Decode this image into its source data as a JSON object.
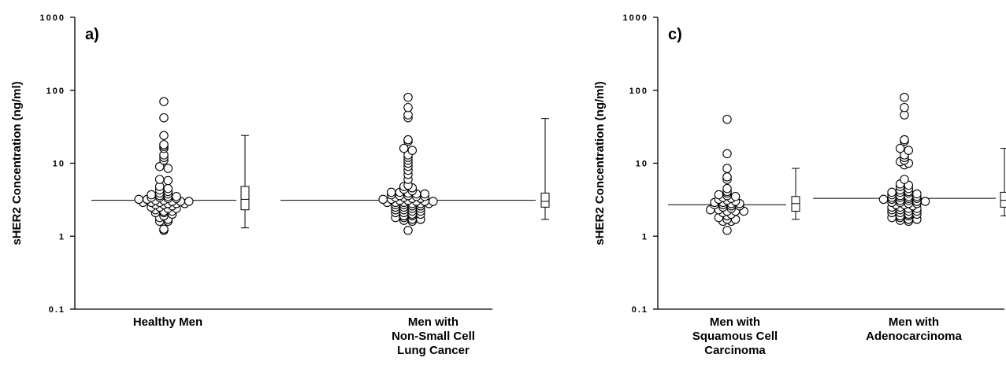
{
  "chart_data": [
    {
      "type": "scatter",
      "panel_label": "a)",
      "ylabel": "sHER2 Concentration (ng/ml)",
      "yscale": "log",
      "ylim": [
        0.1,
        1000
      ],
      "yticks": [
        0.1,
        1,
        10,
        100,
        1000
      ],
      "ytick_labels": [
        "0.1",
        "1",
        "10",
        "100",
        "1000"
      ],
      "grid": false,
      "groups": [
        {
          "label": [
            "Healthy Men"
          ],
          "median": 3.1,
          "box": {
            "min": 1.3,
            "q1": 2.3,
            "median": 3.2,
            "q3": 4.8,
            "max": 24
          },
          "values": [
            70,
            42,
            24,
            18,
            17,
            16,
            13,
            12,
            11,
            9,
            8.5,
            6,
            5.8,
            4.8,
            4.5,
            4.3,
            4.1,
            3.9,
            3.8,
            3.7,
            3.6,
            3.5,
            3.5,
            3.4,
            3.4,
            3.3,
            3.3,
            3.2,
            3.2,
            3.1,
            3.1,
            3.0,
            3.0,
            3.0,
            2.9,
            2.9,
            2.9,
            2.8,
            2.8,
            2.8,
            2.7,
            2.7,
            2.6,
            2.5,
            2.5,
            2.4,
            2.4,
            2.3,
            2.2,
            2.2,
            2.1,
            2.1,
            2.0,
            1.9,
            1.8,
            1.7,
            1.6,
            1.6,
            1.25,
            1.2
          ]
        },
        {
          "label": [
            "Men with",
            "Non-Small Cell",
            "Lung Cancer"
          ],
          "median": 3.1,
          "box": {
            "min": 1.7,
            "q1": 2.5,
            "median": 3.0,
            "q3": 3.9,
            "max": 41
          },
          "values": [
            80,
            58,
            46,
            42,
            21,
            20,
            16,
            15,
            13,
            12,
            11,
            10,
            9,
            8,
            7,
            6,
            5,
            4.8,
            4.6,
            4.4,
            4.2,
            4.0,
            4.0,
            3.9,
            3.8,
            3.8,
            3.7,
            3.6,
            3.6,
            3.5,
            3.5,
            3.4,
            3.4,
            3.3,
            3.3,
            3.2,
            3.2,
            3.1,
            3.1,
            3.0,
            3.0,
            3.0,
            2.9,
            2.9,
            2.9,
            2.8,
            2.8,
            2.8,
            2.7,
            2.7,
            2.6,
            2.6,
            2.5,
            2.5,
            2.4,
            2.4,
            2.3,
            2.3,
            2.2,
            2.2,
            2.1,
            2.1,
            2.0,
            2.0,
            1.9,
            1.9,
            1.8,
            1.8,
            1.7,
            1.7,
            1.65,
            1.6,
            1.2
          ]
        }
      ]
    },
    {
      "type": "scatter",
      "panel_label": "c)",
      "ylabel": "sHER2 Concentration (ng/ml)",
      "yscale": "log",
      "ylim": [
        0.1,
        1000
      ],
      "yticks": [
        0.1,
        1,
        10,
        100,
        1000
      ],
      "ytick_labels": [
        "0.1",
        "1",
        "10",
        "100",
        "1000"
      ],
      "grid": false,
      "groups": [
        {
          "label": [
            "Men with",
            "Squamous Cell",
            "Carcinoma"
          ],
          "median": 2.7,
          "box": {
            "min": 1.7,
            "q1": 2.2,
            "median": 2.8,
            "q3": 3.5,
            "max": 8.5
          },
          "values": [
            40,
            13.5,
            8.5,
            6.5,
            6.0,
            4.5,
            4.1,
            3.9,
            3.7,
            3.6,
            3.5,
            3.4,
            3.3,
            3.2,
            3.1,
            3.0,
            2.9,
            2.9,
            2.8,
            2.8,
            2.7,
            2.7,
            2.6,
            2.6,
            2.5,
            2.4,
            2.3,
            2.3,
            2.2,
            2.2,
            2.2,
            2.1,
            2.0,
            1.9,
            1.8,
            1.7,
            1.7,
            1.6,
            1.6,
            1.2
          ]
        },
        {
          "label": [
            "Men with",
            "Adenocarcinoma"
          ],
          "median": 3.3,
          "box": {
            "min": 1.9,
            "q1": 2.5,
            "median": 3.1,
            "q3": 4.0,
            "max": 16
          },
          "values": [
            80,
            58,
            46,
            21,
            20,
            16,
            15,
            13,
            12,
            11,
            10.5,
            10,
            9.5,
            6.0,
            5.2,
            5.0,
            4.8,
            4.5,
            4.3,
            4.1,
            4.0,
            4.0,
            3.9,
            3.8,
            3.7,
            3.6,
            3.5,
            3.5,
            3.4,
            3.4,
            3.3,
            3.3,
            3.2,
            3.2,
            3.1,
            3.1,
            3.0,
            3.0,
            2.9,
            2.9,
            2.8,
            2.8,
            2.7,
            2.7,
            2.6,
            2.5,
            2.5,
            2.4,
            2.4,
            2.3,
            2.3,
            2.2,
            2.2,
            2.1,
            2.1,
            2.0,
            2.0,
            1.9,
            1.9,
            1.8,
            1.8,
            1.7,
            1.7,
            1.65,
            1.6
          ]
        }
      ]
    }
  ]
}
